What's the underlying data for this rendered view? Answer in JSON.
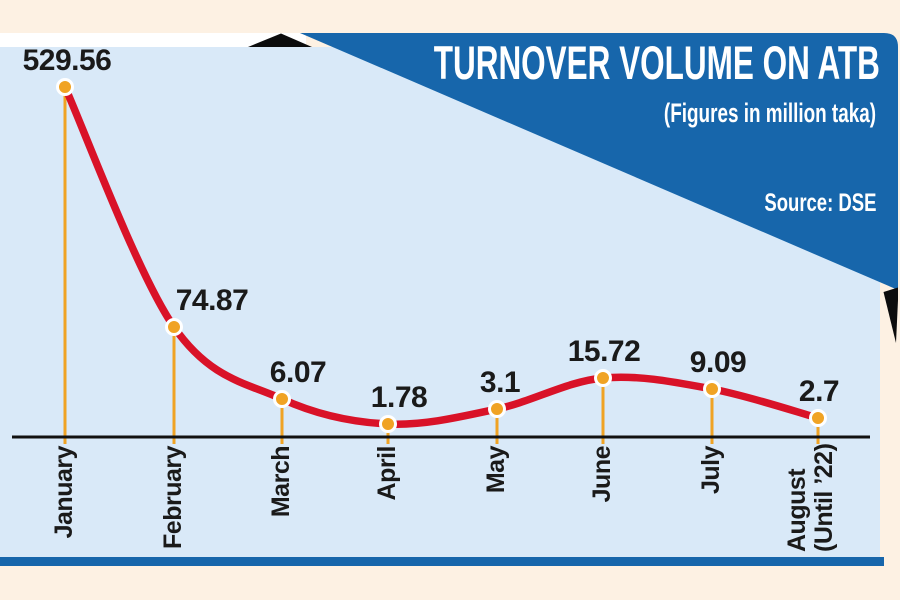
{
  "banner": {
    "title": "TURNOVER VOLUME ON ATB",
    "subtitle": "(Figures in million taka)",
    "source": "Source: DSE"
  },
  "chart_data": {
    "type": "line",
    "title": "TURNOVER VOLUME ON ATB",
    "subtitle": "(Figures in million taka)",
    "source": "Source: DSE",
    "unit": "million taka",
    "categories": [
      [
        "January"
      ],
      [
        "February"
      ],
      [
        "March"
      ],
      [
        "April"
      ],
      [
        "May"
      ],
      [
        "June"
      ],
      [
        "July"
      ],
      [
        "August",
        "(Until ’22)"
      ]
    ],
    "values": [
      529.56,
      74.87,
      6.07,
      1.78,
      3.1,
      15.72,
      9.09,
      2.7
    ],
    "value_labels": [
      "529.56",
      "74.87",
      "6.07",
      "1.78",
      "3.1",
      "15.72",
      "9.09",
      "2.7"
    ],
    "grid": false,
    "legend": false,
    "y_axis": {
      "visible": false,
      "scale": "stylized non-linear"
    },
    "x_axis": {
      "line": true,
      "tick_style": "orange stem under each point"
    },
    "colors": {
      "line": "#d91228",
      "point_fill": "#f0a324",
      "point_ring": "#ffffff",
      "stem": "#f0a324",
      "axis": "#111111",
      "label_text": "#1a1a1a",
      "banner_blue": "#1766ab",
      "panel_light_blue": "#d9e9f8",
      "page_cream": "#fdf1e3",
      "banner_text": "#ffffff",
      "fold_black": "#0c0c0c"
    }
  }
}
